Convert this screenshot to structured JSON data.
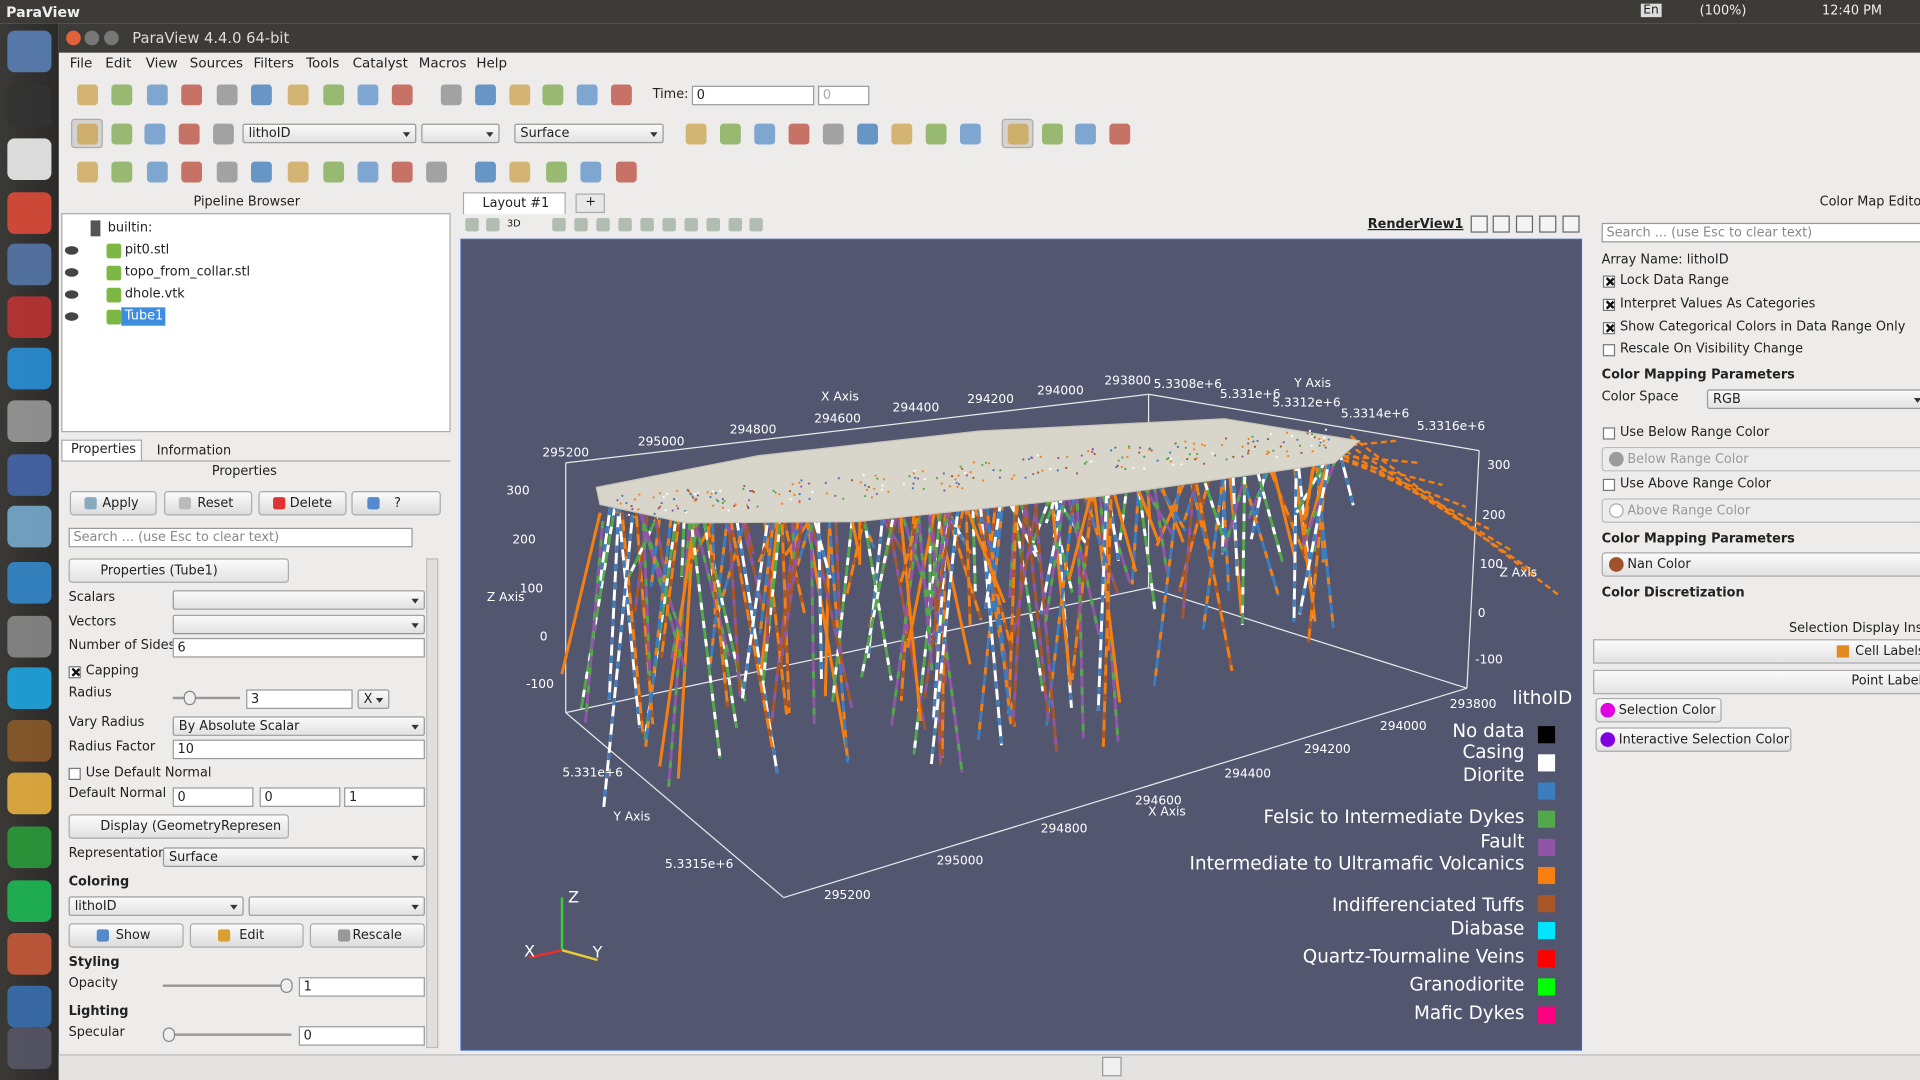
{
  "system_bar": {
    "app": "ParaView",
    "keyboard": "En",
    "battery": "(100%)",
    "clock": "12:40 PM"
  },
  "window": {
    "title": "ParaView 4.4.0 64-bit"
  },
  "menu": [
    "File",
    "Edit",
    "View",
    "Sources",
    "Filters",
    "Tools",
    "Catalyst",
    "Macros",
    "Help"
  ],
  "toolbar": {
    "time_label": "Time:",
    "time_value": "0",
    "time_index": "0",
    "color_array": "lithoID",
    "representation": "Surface"
  },
  "pipeline_browser": {
    "title": "Pipeline Browser",
    "items": [
      "builtin:",
      "pit0.stl",
      "topo_from_collar.stl",
      "dhole.vtk",
      "Tube1"
    ]
  },
  "properties": {
    "tabs": [
      "Properties",
      "Information"
    ],
    "title": "Properties",
    "buttons": [
      "Apply",
      "Reset",
      "Delete",
      "?"
    ],
    "search": "Search ... (use Esc to clear text)",
    "section": "Properties (Tube1)",
    "scalars": "Scalars",
    "vectors": "Vectors",
    "number_of_sides": {
      "label": "Number of Sides",
      "value": "6"
    },
    "capping": {
      "label": "Capping",
      "checked": true
    },
    "radius": {
      "label": "Radius",
      "value": "3",
      "axis": "X"
    },
    "vary_radius": {
      "label": "Vary Radius",
      "value": "By Absolute Scalar"
    },
    "radius_factor": {
      "label": "Radius Factor",
      "value": "10"
    },
    "use_default_normal": {
      "label": "Use Default Normal",
      "checked": false
    },
    "default_normal": {
      "label": "Default Normal",
      "values": [
        "0",
        "0",
        "1"
      ]
    },
    "display_section": "Display (GeometryRepresenta",
    "representation": {
      "label": "Representation",
      "value": "Surface"
    },
    "coloring": {
      "label": "Coloring",
      "array": "lithoID",
      "buttons": [
        "Show",
        "Edit",
        "Rescale"
      ]
    },
    "styling": {
      "label": "Styling",
      "opacity_label": "Opacity",
      "opacity": "1"
    },
    "lighting": {
      "label": "Lighting",
      "specular_label": "Specular",
      "specular": "0"
    }
  },
  "layout": {
    "tab": "Layout #1",
    "new_tab": "+",
    "view_name": "RenderView1",
    "button_3d": "3D"
  },
  "render_view": {
    "axis_labels": [
      "X Axis",
      "294600",
      "294400",
      "294200",
      "294000",
      "293800",
      "295000",
      "294800",
      "295200",
      "5.3308e+6",
      "5.331e+6",
      "Y Axis",
      "5.3312e+6",
      "5.3314e+6",
      "5.3316e+6",
      "300",
      "200",
      "Z Axis",
      "100",
      "0",
      "-100",
      "300",
      "200",
      "100",
      "Z Axis",
      "0",
      "-100",
      "293800",
      "294000",
      "294200",
      "294400",
      "294600",
      "X Axis",
      "294800",
      "295000",
      "295200",
      "5.331e+6",
      "Y Axis",
      "5.3315e+6"
    ],
    "legend": {
      "title": "lithoID",
      "items": [
        {
          "label": "No data",
          "color": "#000000"
        },
        {
          "label": "Casing",
          "color": "#ffffff"
        },
        {
          "label": "Diorite",
          "color": "#3b7dbf"
        },
        {
          "label": "Felsic to Intermediate Dykes",
          "color": "#52a84a"
        },
        {
          "label": "Fault",
          "color": "#9055a6"
        },
        {
          "label": "Intermediate to Ultramafic Volcanics",
          "color": "#f57f10"
        },
        {
          "label": "Indifferenciated Tuffs",
          "color": "#a65628"
        },
        {
          "label": "Diabase",
          "color": "#00e5ff"
        },
        {
          "label": "Quartz-Tourmaline Veins",
          "color": "#ff0000"
        },
        {
          "label": "Granodiorite",
          "color": "#00ff00"
        },
        {
          "label": "Mafic Dykes",
          "color": "#ff0080"
        }
      ]
    },
    "orientation": {
      "z": "Z",
      "x": "X",
      "y": "Y"
    }
  },
  "color_map_editor": {
    "title": "Color Map Editor",
    "search": "Search ... (use Esc to clear text)",
    "array_name": "Array Name: lithoID",
    "options": [
      {
        "label": "Lock Data Range",
        "checked": true
      },
      {
        "label": "Interpret Values As Categories",
        "checked": true
      },
      {
        "label": "Show Categorical Colors in Data Range Only",
        "checked": true
      },
      {
        "label": "Rescale On Visibility Change",
        "checked": false
      }
    ],
    "mapping_title": "Color Mapping Parameters",
    "color_space": {
      "label": "Color Space",
      "value": "RGB"
    },
    "use_below": {
      "label": "Use Below Range Color",
      "checked": false
    },
    "below_color": "Below Range Color",
    "use_above": {
      "label": "Use Above Range Color",
      "checked": false
    },
    "above_color": "Above Range Color",
    "mapping_title_2": "Color Mapping Parameters",
    "nan_color": "Nan Color",
    "discretization": "Color Discretization",
    "selection_title": "Selection Display Inspe",
    "cell_labels": "Cell Labels",
    "point_labels": "Point Labels",
    "selection_color": "Selection Color",
    "interactive_selection_color": "Interactive Selection Color"
  }
}
